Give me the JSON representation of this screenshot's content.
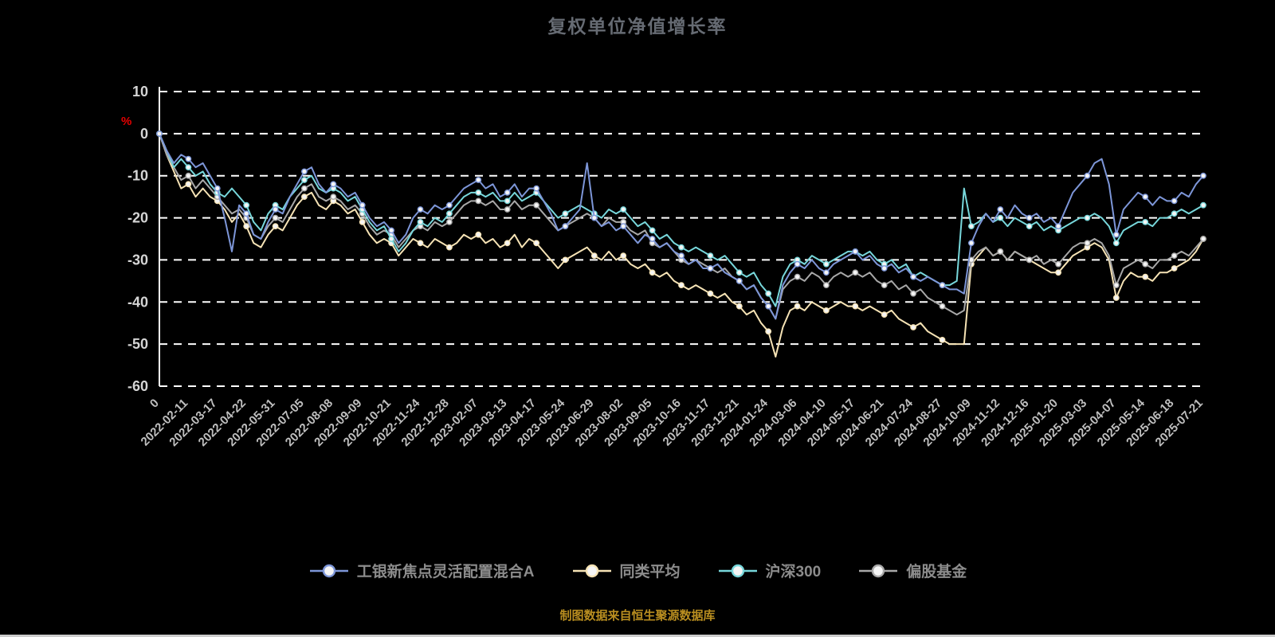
{
  "title": "复权单位净值增长率",
  "source_note": "制图数据来自恒生聚源数据库",
  "y_axis_unit": "%",
  "colors": {
    "background": "#000000",
    "grid": "#ffffff",
    "title": "#666b73",
    "y_tick_labels": "#d5d5d5",
    "x_tick_labels": "#bfbfbf",
    "unit_label": "#e60000",
    "legend_text": "#8c8c8c",
    "source_note": "#b98e20",
    "bottom_edge": "#cccccc",
    "marker_fill": "#f5f5f5"
  },
  "chart_data": {
    "type": "line",
    "title": "复权单位净值增长率",
    "xlabel": "",
    "ylabel": "%",
    "ylim": [
      -60,
      10
    ],
    "y_ticks": [
      10,
      0,
      -10,
      -20,
      -30,
      -40,
      -50,
      -60
    ],
    "grid": "dashed-horizontal",
    "legend_position": "bottom",
    "points_per_tick_interval": 4,
    "marker_every": 4,
    "x_tick_labels": [
      "0",
      "2022-02-11",
      "2022-03-17",
      "2022-04-22",
      "2022-05-31",
      "2022-07-05",
      "2022-08-08",
      "2022-09-09",
      "2022-10-21",
      "2022-11-24",
      "2022-12-28",
      "2023-02-07",
      "2023-03-13",
      "2023-04-17",
      "2023-05-24",
      "2023-06-29",
      "2023-08-02",
      "2023-09-05",
      "2023-10-16",
      "2023-11-17",
      "2023-12-21",
      "2024-01-24",
      "2024-03-06",
      "2024-04-10",
      "2024-05-17",
      "2024-06-21",
      "2024-07-24",
      "2024-08-27",
      "2024-10-09",
      "2024-11-12",
      "2024-12-16",
      "2025-01-20",
      "2025-03-03",
      "2025-04-07",
      "2025-05-14",
      "2025-06-18",
      "2025-07-21"
    ],
    "series": [
      {
        "name": "工银新焦点灵活配置混合A",
        "color": "#7d96d8",
        "values": [
          0,
          -4,
          -7,
          -5,
          -6,
          -8,
          -7,
          -10,
          -13,
          -20,
          -28,
          -17,
          -19,
          -24,
          -25,
          -21,
          -18,
          -19,
          -15,
          -12,
          -9,
          -8,
          -12,
          -14,
          -12,
          -13,
          -15,
          -14,
          -17,
          -20,
          -22,
          -21,
          -23,
          -26,
          -24,
          -20,
          -18,
          -19,
          -17,
          -18,
          -17,
          -15,
          -13,
          -12,
          -11,
          -13,
          -12,
          -15,
          -14,
          -12,
          -15,
          -13,
          -13,
          -16,
          -19,
          -23,
          -22,
          -20,
          -18,
          -7,
          -20,
          -22,
          -21,
          -23,
          -22,
          -24,
          -26,
          -24,
          -25,
          -27,
          -26,
          -28,
          -29,
          -31,
          -30,
          -32,
          -32,
          -31,
          -33,
          -34,
          -35,
          -37,
          -36,
          -39,
          -41,
          -44,
          -36,
          -33,
          -31,
          -32,
          -30,
          -32,
          -33,
          -31,
          -30,
          -29,
          -28,
          -30,
          -29,
          -31,
          -32,
          -31,
          -33,
          -32,
          -34,
          -35,
          -34,
          -35,
          -36,
          -37,
          -37,
          -38,
          -26,
          -22,
          -19,
          -21,
          -18,
          -20,
          -17,
          -19,
          -20,
          -19,
          -21,
          -20,
          -22,
          -18,
          -14,
          -12,
          -10,
          -7,
          -6,
          -12,
          -24,
          -18,
          -16,
          -14,
          -15,
          -17,
          -15,
          -16,
          -16,
          -14,
          -15,
          -12,
          -10
        ]
      },
      {
        "name": "同类平均",
        "color": "#f6e3b5",
        "values": [
          0,
          -5,
          -9,
          -13,
          -12,
          -15,
          -13,
          -15,
          -16,
          -18,
          -21,
          -19,
          -22,
          -26,
          -27,
          -24,
          -22,
          -23,
          -20,
          -17,
          -15,
          -14,
          -17,
          -18,
          -16,
          -17,
          -19,
          -18,
          -21,
          -24,
          -26,
          -25,
          -26,
          -29,
          -27,
          -25,
          -26,
          -27,
          -25,
          -26,
          -27,
          -26,
          -24,
          -25,
          -24,
          -26,
          -25,
          -27,
          -26,
          -24,
          -27,
          -25,
          -26,
          -28,
          -30,
          -32,
          -30,
          -29,
          -28,
          -27,
          -29,
          -30,
          -28,
          -30,
          -29,
          -31,
          -32,
          -31,
          -33,
          -34,
          -33,
          -35,
          -36,
          -37,
          -36,
          -37,
          -38,
          -39,
          -38,
          -40,
          -41,
          -43,
          -42,
          -45,
          -47,
          -53,
          -46,
          -42,
          -41,
          -42,
          -40,
          -41,
          -42,
          -41,
          -40,
          -41,
          -41,
          -42,
          -41,
          -42,
          -43,
          -42,
          -44,
          -45,
          -46,
          -45,
          -47,
          -48,
          -49,
          -50,
          -50,
          -50,
          -31,
          -29,
          -27,
          -29,
          -28,
          -30,
          -28,
          -29,
          -30,
          -31,
          -32,
          -33,
          -33,
          -31,
          -29,
          -28,
          -27,
          -26,
          -27,
          -30,
          -39,
          -35,
          -33,
          -34,
          -34,
          -35,
          -33,
          -33,
          -32,
          -31,
          -30,
          -28,
          -25
        ]
      },
      {
        "name": "沪深300",
        "color": "#77d7db",
        "values": [
          0,
          -4,
          -8,
          -6,
          -8,
          -10,
          -9,
          -12,
          -14,
          -15,
          -13,
          -15,
          -17,
          -21,
          -23,
          -19,
          -17,
          -18,
          -15,
          -13,
          -11,
          -10,
          -13,
          -14,
          -13,
          -14,
          -16,
          -15,
          -18,
          -21,
          -23,
          -22,
          -25,
          -28,
          -26,
          -23,
          -21,
          -22,
          -20,
          -21,
          -19,
          -17,
          -15,
          -14,
          -14,
          -15,
          -14,
          -16,
          -16,
          -14,
          -16,
          -15,
          -14,
          -16,
          -18,
          -20,
          -19,
          -18,
          -17,
          -18,
          -19,
          -20,
          -18,
          -19,
          -18,
          -20,
          -22,
          -21,
          -23,
          -25,
          -24,
          -26,
          -27,
          -28,
          -27,
          -28,
          -29,
          -30,
          -29,
          -31,
          -33,
          -34,
          -33,
          -36,
          -38,
          -41,
          -34,
          -31,
          -30,
          -31,
          -29,
          -30,
          -31,
          -30,
          -29,
          -28,
          -28,
          -29,
          -28,
          -30,
          -31,
          -30,
          -32,
          -31,
          -34,
          -33,
          -34,
          -35,
          -36,
          -36,
          -35,
          -13,
          -22,
          -21,
          -19,
          -21,
          -20,
          -22,
          -20,
          -21,
          -22,
          -21,
          -23,
          -22,
          -23,
          -22,
          -21,
          -20,
          -20,
          -19,
          -20,
          -22,
          -26,
          -23,
          -22,
          -21,
          -21,
          -22,
          -20,
          -20,
          -19,
          -18,
          -19,
          -18,
          -17
        ]
      },
      {
        "name": "偏股基金",
        "color": "#a8a8a8",
        "values": [
          0,
          -5,
          -8,
          -11,
          -10,
          -13,
          -11,
          -13,
          -15,
          -17,
          -19,
          -18,
          -20,
          -24,
          -25,
          -22,
          -20,
          -21,
          -18,
          -15,
          -13,
          -12,
          -15,
          -16,
          -15,
          -16,
          -18,
          -17,
          -19,
          -22,
          -24,
          -23,
          -24,
          -27,
          -25,
          -23,
          -22,
          -23,
          -21,
          -22,
          -21,
          -19,
          -17,
          -16,
          -16,
          -17,
          -16,
          -18,
          -18,
          -16,
          -18,
          -17,
          -17,
          -19,
          -21,
          -23,
          -22,
          -21,
          -20,
          -19,
          -20,
          -22,
          -20,
          -21,
          -21,
          -23,
          -24,
          -23,
          -26,
          -27,
          -26,
          -28,
          -30,
          -31,
          -30,
          -31,
          -32,
          -33,
          -32,
          -34,
          -35,
          -37,
          -36,
          -39,
          -41,
          -44,
          -37,
          -35,
          -34,
          -35,
          -33,
          -34,
          -36,
          -34,
          -33,
          -34,
          -33,
          -34,
          -33,
          -35,
          -36,
          -35,
          -37,
          -36,
          -38,
          -37,
          -39,
          -40,
          -41,
          -42,
          -43,
          -42,
          -30,
          -28,
          -27,
          -29,
          -28,
          -30,
          -28,
          -29,
          -30,
          -29,
          -31,
          -30,
          -31,
          -29,
          -27,
          -26,
          -26,
          -25,
          -26,
          -29,
          -36,
          -32,
          -31,
          -30,
          -31,
          -32,
          -30,
          -30,
          -29,
          -28,
          -29,
          -27,
          -25
        ]
      }
    ]
  }
}
